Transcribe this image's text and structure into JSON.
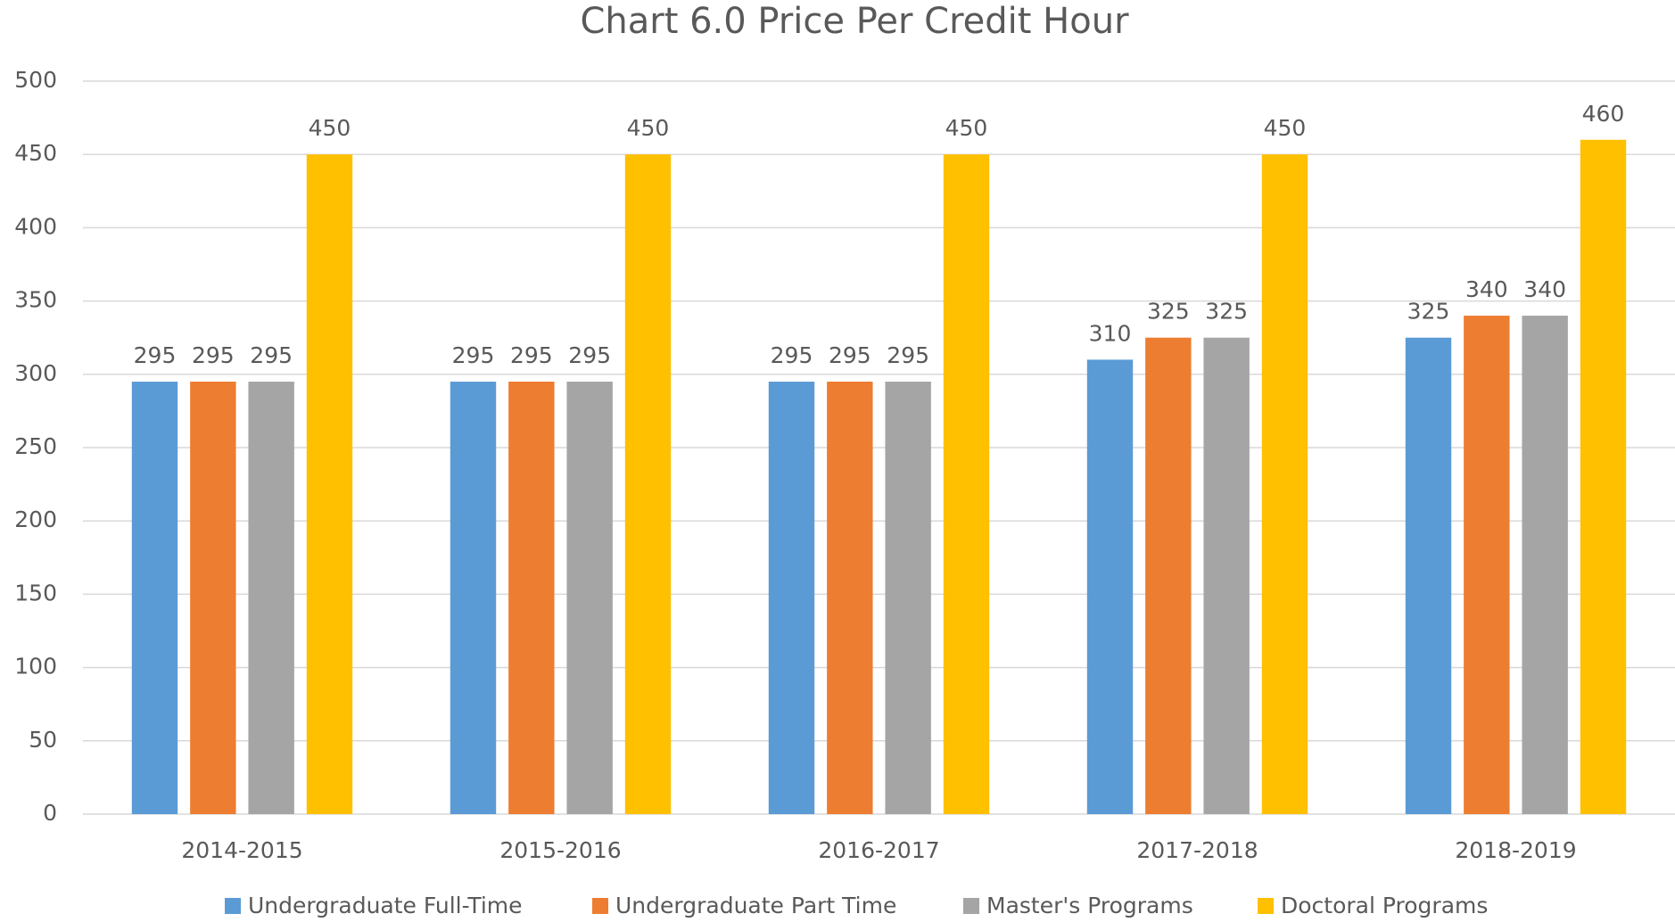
{
  "chart_data": {
    "type": "bar",
    "title": "Chart 6.0 Price Per Credit Hour",
    "categories": [
      "2014-2015",
      "2015-2016",
      "2016-2017",
      "2017-2018",
      "2018-2019"
    ],
    "series": [
      {
        "name": "Undergraduate Full-Time",
        "color": "#5b9bd5",
        "values": [
          295,
          295,
          295,
          310,
          325
        ]
      },
      {
        "name": "Undergraduate Part Time",
        "color": "#ed7d31",
        "values": [
          295,
          295,
          295,
          325,
          340
        ]
      },
      {
        "name": "Master's Programs",
        "color": "#a5a5a5",
        "values": [
          295,
          295,
          295,
          325,
          340
        ]
      },
      {
        "name": "Doctoral Programs",
        "color": "#ffc000",
        "values": [
          450,
          450,
          450,
          450,
          460
        ]
      }
    ],
    "ylim": [
      0,
      500
    ],
    "yticks": [
      0,
      50,
      100,
      150,
      200,
      250,
      300,
      350,
      400,
      450,
      500
    ],
    "grid": true,
    "legend": "bottom"
  }
}
